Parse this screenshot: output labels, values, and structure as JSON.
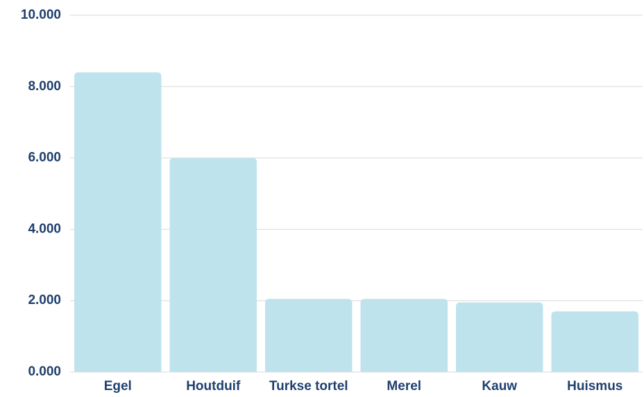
{
  "chart_data": {
    "type": "bar",
    "categories": [
      "Egel",
      "Houtduif",
      "Turkse tortel",
      "Merel",
      "Kauw",
      "Huismus"
    ],
    "values": [
      8400,
      6000,
      2050,
      2050,
      1950,
      1700
    ],
    "color": "#bfe3ec",
    "ylim": [
      0,
      10000
    ],
    "yticks": [
      {
        "value": 0,
        "label": "0.000"
      },
      {
        "value": 2000,
        "label": "2.000"
      },
      {
        "value": 4000,
        "label": "4.000"
      },
      {
        "value": 6000,
        "label": "6.000"
      },
      {
        "value": 8000,
        "label": "8.000"
      },
      {
        "value": 10000,
        "label": "10.000"
      }
    ],
    "grid": true
  }
}
